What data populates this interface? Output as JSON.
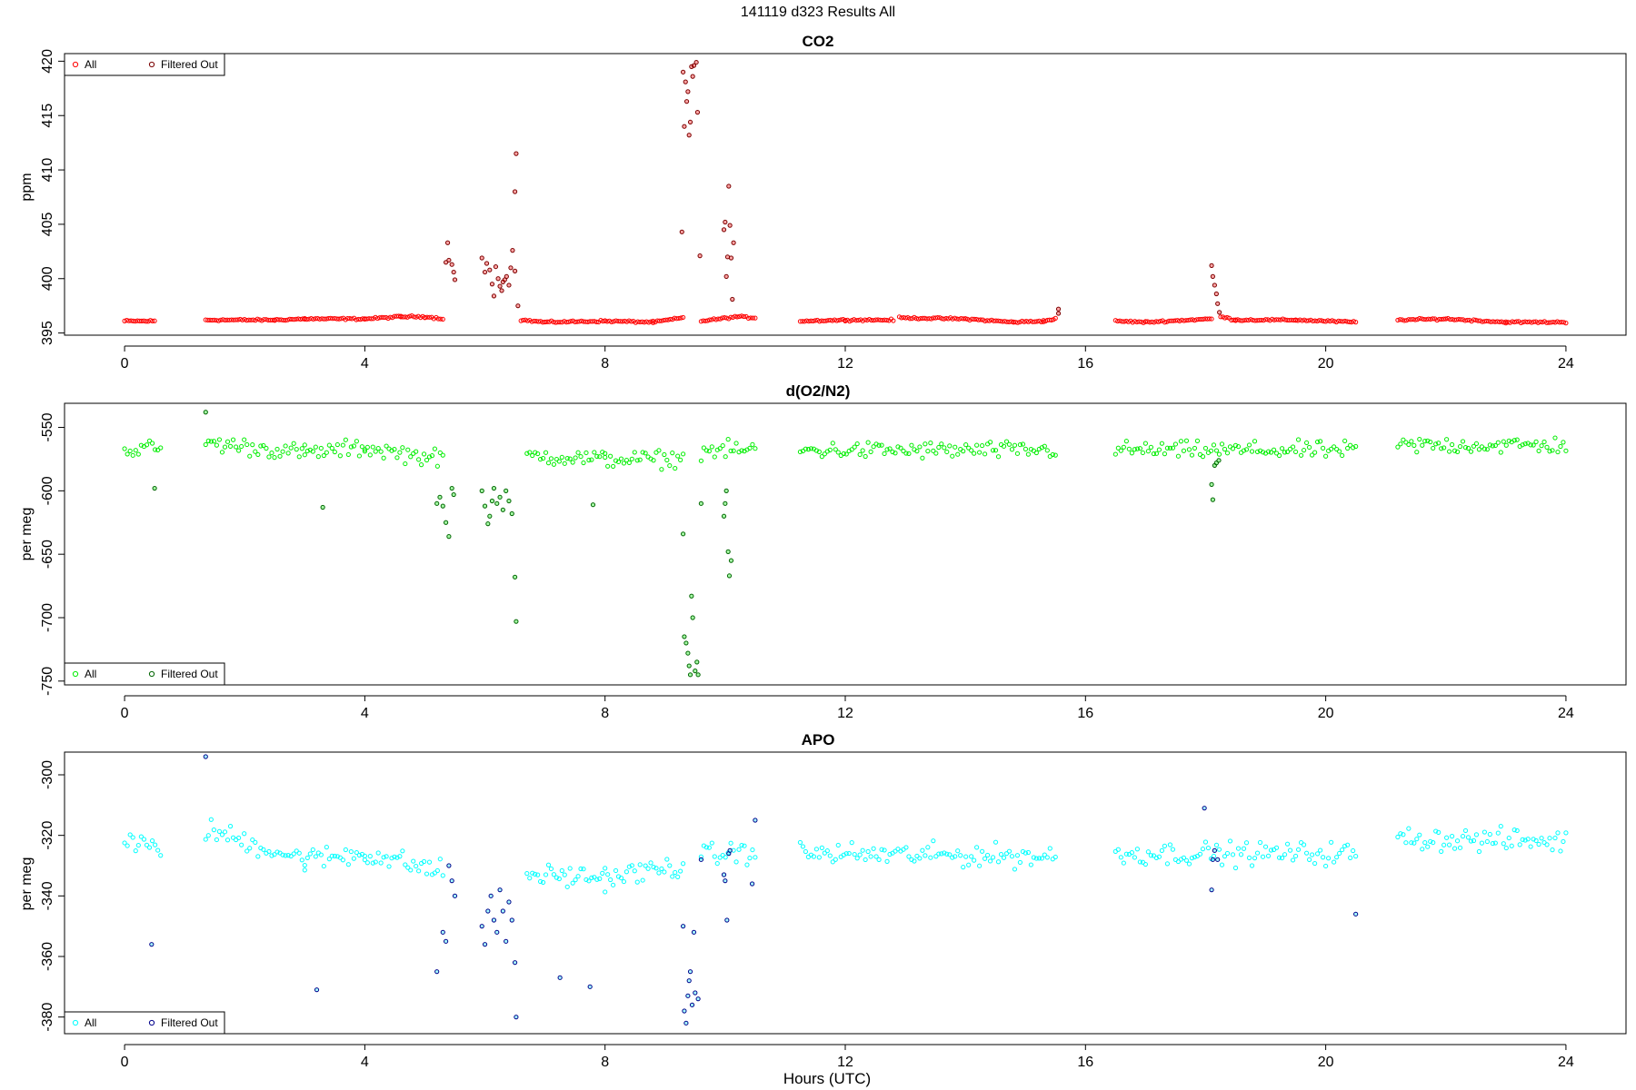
{
  "page_title": "141119   d323   Results All",
  "xlabel": "Hours (UTC)",
  "chart_data": [
    {
      "type": "scatter",
      "title": "CO2",
      "xlabel": "",
      "ylabel": "ppm",
      "xlim": [
        -1.0,
        25.0
      ],
      "ylim": [
        394.8,
        420.7
      ],
      "xticks": [
        0,
        4,
        8,
        12,
        16,
        20,
        24
      ],
      "yticks": [
        395,
        400,
        405,
        410,
        415,
        420
      ],
      "legend": {
        "placement": "top-left",
        "entries": [
          "All",
          "Filtered Out"
        ]
      },
      "grid": false,
      "colors": {
        "all": "#ff0000",
        "filtered": "#7a0000"
      },
      "gaps": [
        [
          0.55,
          1.35
        ],
        [
          10.55,
          11.25
        ],
        [
          15.55,
          16.5
        ],
        [
          20.6,
          21.2
        ]
      ],
      "segments": [
        {
          "x": [
            0.0,
            0.5
          ],
          "y": [
            396.1,
            396.1
          ]
        },
        {
          "x": [
            1.35,
            2.5,
            3.0,
            4.0,
            4.6,
            5.0,
            5.3
          ],
          "y": [
            396.2,
            396.2,
            396.3,
            396.3,
            396.5,
            396.5,
            396.3
          ]
        },
        {
          "x": [
            6.6,
            7.0,
            8.0,
            8.8,
            9.3
          ],
          "y": [
            396.2,
            396.0,
            396.1,
            396.0,
            396.4
          ]
        },
        {
          "x": [
            9.6,
            10.2,
            10.5
          ],
          "y": [
            396.1,
            396.5,
            396.4
          ]
        },
        {
          "x": [
            11.25,
            12.0,
            12.8
          ],
          "y": [
            396.1,
            396.2,
            396.2
          ]
        },
        {
          "x": [
            12.9,
            14.0,
            14.8,
            15.3,
            15.5
          ],
          "y": [
            396.4,
            396.3,
            396.0,
            396.1,
            396.3
          ]
        },
        {
          "x": [
            16.5,
            17.0,
            18.1
          ],
          "y": [
            396.1,
            396.0,
            396.3
          ]
        },
        {
          "x": [
            18.25,
            18.5,
            19.5,
            20.5
          ],
          "y": [
            396.5,
            396.2,
            396.2,
            396.0
          ]
        },
        {
          "x": [
            21.2,
            22.0,
            23.0,
            24.0
          ],
          "y": [
            396.2,
            396.3,
            396.0,
            396.0
          ]
        }
      ],
      "points": [
        [
          5.35,
          401.5
        ],
        [
          5.38,
          403.3
        ],
        [
          5.4,
          401.7
        ],
        [
          5.45,
          401.3
        ],
        [
          5.48,
          400.6
        ],
        [
          5.5,
          399.9
        ],
        [
          5.95,
          401.9
        ],
        [
          6.0,
          400.6
        ],
        [
          6.03,
          401.4
        ],
        [
          6.08,
          400.8
        ],
        [
          6.12,
          399.5
        ],
        [
          6.15,
          398.4
        ],
        [
          6.18,
          401.1
        ],
        [
          6.22,
          400.0
        ],
        [
          6.25,
          399.3
        ],
        [
          6.28,
          398.9
        ],
        [
          6.3,
          399.7
        ],
        [
          6.33,
          399.9
        ],
        [
          6.36,
          400.2
        ],
        [
          6.4,
          399.4
        ],
        [
          6.43,
          401.0
        ],
        [
          6.46,
          402.6
        ],
        [
          6.5,
          408.0
        ],
        [
          6.52,
          411.5
        ],
        [
          6.55,
          397.5
        ],
        [
          6.5,
          400.7
        ],
        [
          9.28,
          404.3
        ],
        [
          9.3,
          419.0
        ],
        [
          9.32,
          414.0
        ],
        [
          9.34,
          418.1
        ],
        [
          9.36,
          416.3
        ],
        [
          9.38,
          417.2
        ],
        [
          9.4,
          413.2
        ],
        [
          9.42,
          414.4
        ],
        [
          9.44,
          419.5
        ],
        [
          9.46,
          418.6
        ],
        [
          9.48,
          419.6
        ],
        [
          9.52,
          419.9
        ],
        [
          9.54,
          415.3
        ],
        [
          9.58,
          402.1
        ],
        [
          9.98,
          404.5
        ],
        [
          10.0,
          405.2
        ],
        [
          10.02,
          400.2
        ],
        [
          10.04,
          402.0
        ],
        [
          10.06,
          408.5
        ],
        [
          10.08,
          404.9
        ],
        [
          10.1,
          401.9
        ],
        [
          10.12,
          398.1
        ],
        [
          10.14,
          403.3
        ],
        [
          18.1,
          401.2
        ],
        [
          18.12,
          400.2
        ],
        [
          18.15,
          399.4
        ],
        [
          18.18,
          398.6
        ],
        [
          18.2,
          397.7
        ],
        [
          18.23,
          396.9
        ],
        [
          15.55,
          396.8
        ],
        [
          15.55,
          397.2
        ]
      ]
    },
    {
      "type": "scatter",
      "title": "d(O2/N2)",
      "xlabel": "",
      "ylabel": "per meg",
      "xlim": [
        -1.0,
        25.0
      ],
      "ylim": [
        -753,
        -531
      ],
      "xticks": [
        0,
        4,
        8,
        12,
        16,
        20,
        24
      ],
      "yticks": [
        -550,
        -600,
        -650,
        -700,
        -750
      ],
      "legend": {
        "placement": "bottom-left",
        "entries": [
          "All",
          "Filtered Out"
        ]
      },
      "grid": false,
      "colors": {
        "all": "#00ee00",
        "filtered": "#006400"
      },
      "segments": [
        {
          "x": [
            0.0,
            0.6
          ],
          "y": [
            -568,
            -566
          ]
        },
        {
          "x": [
            1.35,
            3.0,
            4.0,
            5.3
          ],
          "y": [
            -562,
            -570,
            -566,
            -575
          ]
        },
        {
          "x": [
            6.7,
            8.0,
            9.3
          ],
          "y": [
            -572,
            -575,
            -575
          ]
        },
        {
          "x": [
            9.6,
            10.5
          ],
          "y": [
            -568,
            -568
          ]
        },
        {
          "x": [
            11.25,
            15.5
          ],
          "y": [
            -568,
            -568
          ]
        },
        {
          "x": [
            16.5,
            20.5
          ],
          "y": [
            -568,
            -568
          ]
        },
        {
          "x": [
            21.2,
            24.0
          ],
          "y": [
            -564,
            -564
          ]
        }
      ],
      "points": [
        [
          5.2,
          -610
        ],
        [
          5.25,
          -605
        ],
        [
          5.3,
          -612
        ],
        [
          5.35,
          -625
        ],
        [
          5.4,
          -636
        ],
        [
          5.45,
          -598
        ],
        [
          5.48,
          -603
        ],
        [
          5.95,
          -600
        ],
        [
          6.0,
          -612
        ],
        [
          6.05,
          -626
        ],
        [
          6.08,
          -620
        ],
        [
          6.12,
          -608
        ],
        [
          6.15,
          -598
        ],
        [
          6.2,
          -610
        ],
        [
          6.25,
          -605
        ],
        [
          6.3,
          -615
        ],
        [
          6.35,
          -600
        ],
        [
          6.4,
          -608
        ],
        [
          6.45,
          -618
        ],
        [
          6.5,
          -668
        ],
        [
          6.52,
          -703
        ],
        [
          9.3,
          -634
        ],
        [
          9.32,
          -715
        ],
        [
          9.35,
          -720
        ],
        [
          9.38,
          -728
        ],
        [
          9.4,
          -738
        ],
        [
          9.42,
          -745
        ],
        [
          9.44,
          -683
        ],
        [
          9.46,
          -700
        ],
        [
          9.5,
          -742
        ],
        [
          9.53,
          -735
        ],
        [
          9.55,
          -745
        ],
        [
          9.6,
          -610
        ],
        [
          9.98,
          -620
        ],
        [
          10.0,
          -610
        ],
        [
          10.02,
          -600
        ],
        [
          10.05,
          -648
        ],
        [
          10.07,
          -667
        ],
        [
          10.1,
          -655
        ],
        [
          18.1,
          -595
        ],
        [
          18.12,
          -607
        ],
        [
          18.15,
          -580
        ],
        [
          18.18,
          -578
        ],
        [
          18.22,
          -576
        ],
        [
          3.3,
          -613
        ],
        [
          7.8,
          -611
        ],
        [
          0.5,
          -598
        ],
        [
          1.35,
          -538
        ]
      ]
    },
    {
      "type": "scatter",
      "title": "APO",
      "xlabel": "Hours (UTC)",
      "ylabel": "per meg",
      "xlim": [
        -1.0,
        25.0
      ],
      "ylim": [
        -385.5,
        -292.5
      ],
      "xticks": [
        0,
        4,
        8,
        12,
        16,
        20,
        24
      ],
      "yticks": [
        -300,
        -320,
        -340,
        -360,
        -380
      ],
      "legend": {
        "placement": "bottom-left",
        "entries": [
          "All",
          "Filtered Out"
        ]
      },
      "grid": false,
      "colors": {
        "all": "#00ffff",
        "filtered": "#00008b"
      },
      "segments": [
        {
          "x": [
            0.0,
            0.6
          ],
          "y": [
            -322,
            -325
          ]
        },
        {
          "x": [
            1.35,
            3.0,
            4.0,
            5.3
          ],
          "y": [
            -318,
            -328,
            -326,
            -332
          ]
        },
        {
          "x": [
            6.7,
            8.0,
            9.3
          ],
          "y": [
            -333,
            -334,
            -330
          ]
        },
        {
          "x": [
            9.6,
            10.5
          ],
          "y": [
            -327,
            -325
          ]
        },
        {
          "x": [
            11.25,
            15.5
          ],
          "y": [
            -326,
            -327
          ]
        },
        {
          "x": [
            16.5,
            20.5
          ],
          "y": [
            -326,
            -326
          ]
        },
        {
          "x": [
            21.2,
            24.0
          ],
          "y": [
            -321,
            -322
          ]
        }
      ],
      "points": [
        [
          5.2,
          -365
        ],
        [
          5.3,
          -352
        ],
        [
          5.35,
          -355
        ],
        [
          5.4,
          -330
        ],
        [
          5.45,
          -335
        ],
        [
          5.5,
          -340
        ],
        [
          5.95,
          -350
        ],
        [
          6.0,
          -356
        ],
        [
          6.05,
          -345
        ],
        [
          6.1,
          -340
        ],
        [
          6.15,
          -348
        ],
        [
          6.2,
          -352
        ],
        [
          6.25,
          -338
        ],
        [
          6.3,
          -345
        ],
        [
          6.35,
          -355
        ],
        [
          6.4,
          -342
        ],
        [
          6.45,
          -348
        ],
        [
          6.5,
          -362
        ],
        [
          6.52,
          -380
        ],
        [
          9.3,
          -350
        ],
        [
          9.32,
          -378
        ],
        [
          9.35,
          -382
        ],
        [
          9.38,
          -373
        ],
        [
          9.4,
          -368
        ],
        [
          9.42,
          -365
        ],
        [
          9.45,
          -376
        ],
        [
          9.48,
          -352
        ],
        [
          9.5,
          -372
        ],
        [
          9.55,
          -374
        ],
        [
          9.6,
          -328
        ],
        [
          9.98,
          -333
        ],
        [
          10.0,
          -335
        ],
        [
          10.03,
          -348
        ],
        [
          10.06,
          -326
        ],
        [
          10.08,
          -325
        ],
        [
          10.5,
          -315
        ],
        [
          10.45,
          -336
        ],
        [
          18.1,
          -338
        ],
        [
          18.12,
          -328
        ],
        [
          18.15,
          -325
        ],
        [
          18.2,
          -328
        ],
        [
          17.98,
          -311
        ],
        [
          3.2,
          -371
        ],
        [
          1.35,
          -294
        ],
        [
          0.45,
          -356
        ],
        [
          7.25,
          -367
        ],
        [
          7.75,
          -370
        ],
        [
          20.5,
          -346
        ]
      ]
    }
  ]
}
